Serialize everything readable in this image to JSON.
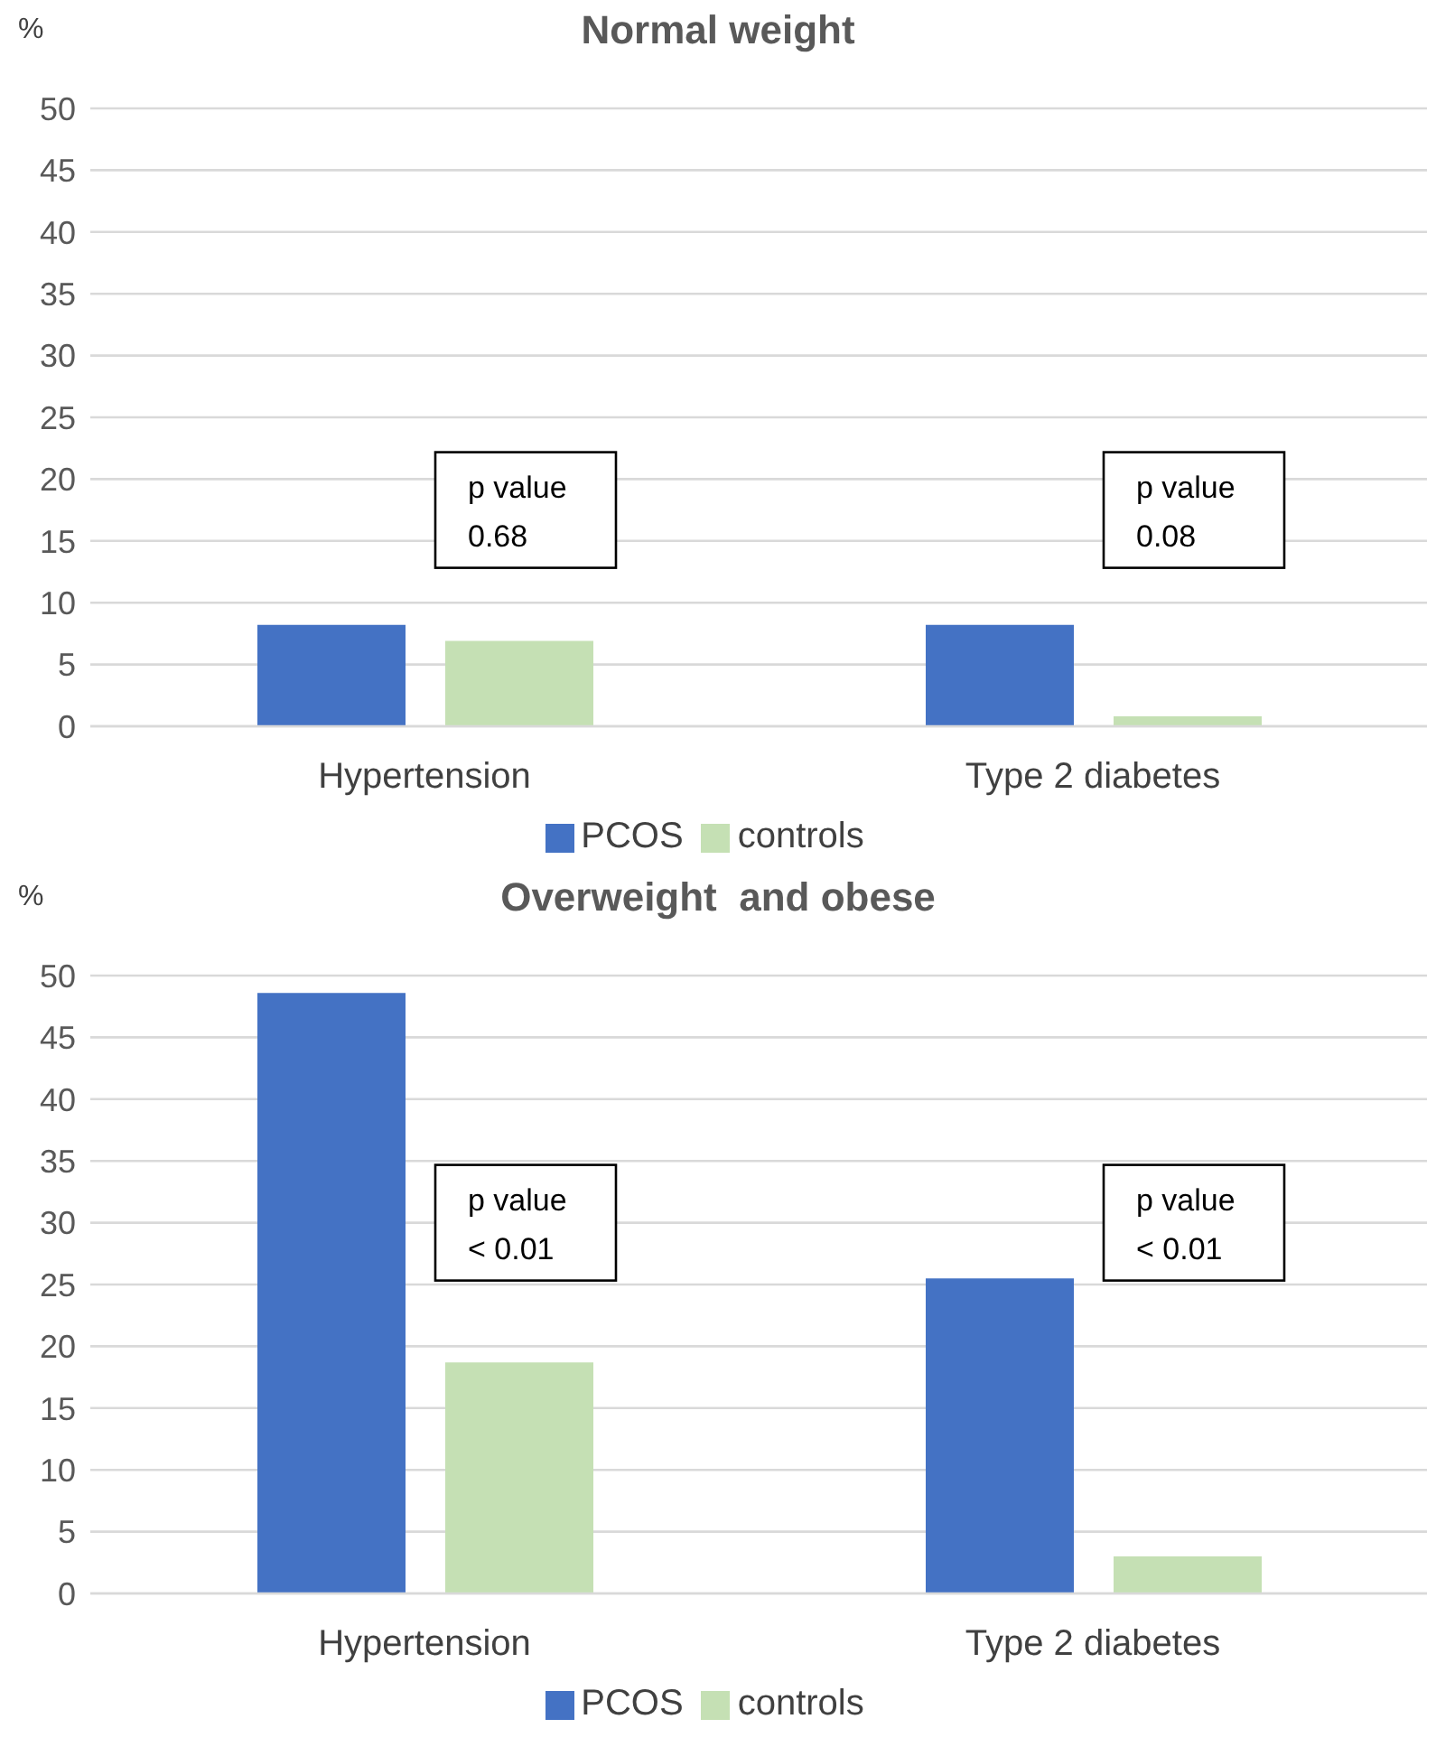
{
  "chart_data": [
    {
      "type": "bar",
      "title": "Normal weight",
      "ylabel": "%",
      "categories": [
        "Hypertension",
        "Type 2 diabetes"
      ],
      "series": [
        {
          "name": "PCOS",
          "color": "#4472c4",
          "values": [
            8.2,
            8.2
          ]
        },
        {
          "name": "controls",
          "color": "#c5e0b4",
          "values": [
            6.9,
            0.8
          ]
        }
      ],
      "ylim": [
        0,
        50
      ],
      "yticks": [
        0,
        5,
        10,
        15,
        20,
        25,
        30,
        35,
        40,
        45,
        50
      ],
      "grid": "y",
      "legend": "bottom",
      "annotations": [
        "p value\n0.68",
        "p value\n0.08"
      ]
    },
    {
      "type": "bar",
      "title": "Overweight  and obese",
      "ylabel": "%",
      "categories": [
        "Hypertension",
        "Type 2 diabetes"
      ],
      "series": [
        {
          "name": "PCOS",
          "color": "#4472c4",
          "values": [
            48.6,
            25.5
          ]
        },
        {
          "name": "controls",
          "color": "#c5e0b4",
          "values": [
            18.7,
            3.0
          ]
        }
      ],
      "ylim": [
        0,
        50
      ],
      "yticks": [
        0,
        5,
        10,
        15,
        20,
        25,
        30,
        35,
        40,
        45,
        50
      ],
      "grid": "y",
      "legend": "bottom",
      "annotations": [
        "p value\n< 0.01",
        "p value\n< 0.01"
      ]
    }
  ]
}
